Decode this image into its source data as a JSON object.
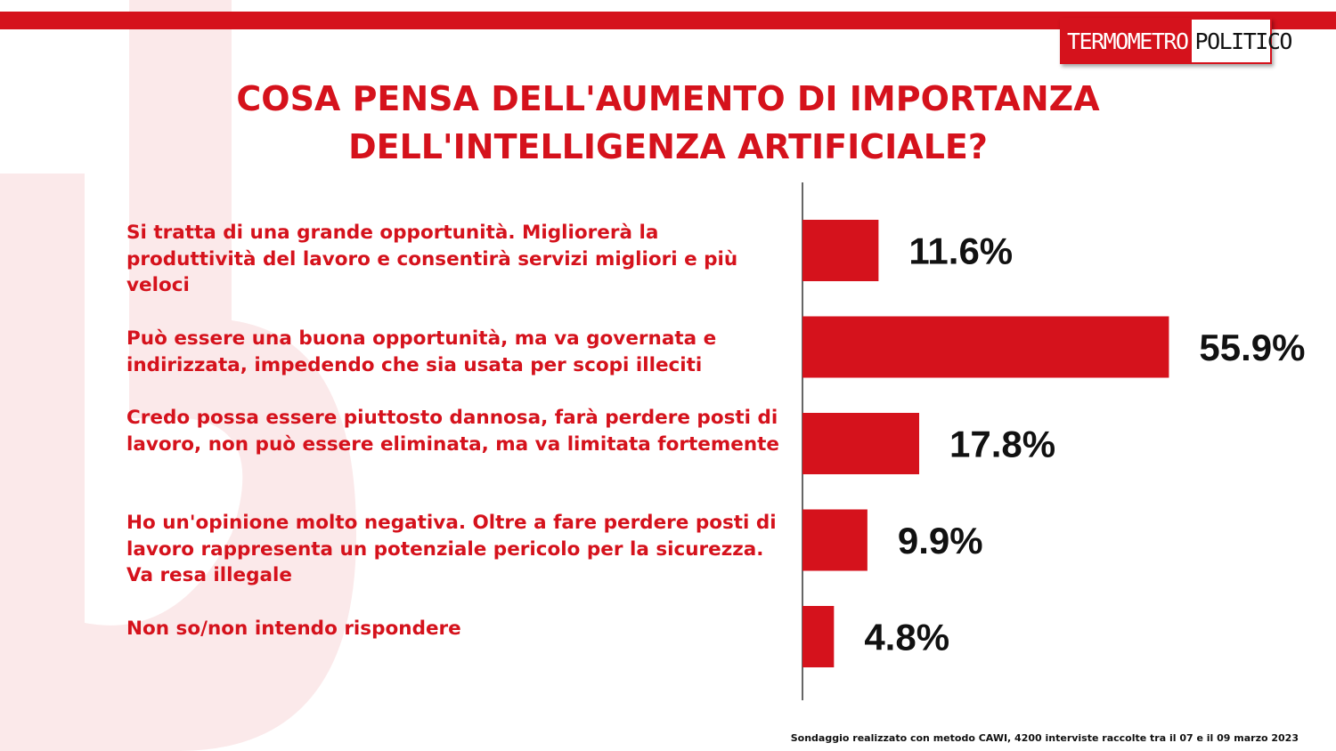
{
  "header": {
    "logo_part1": "TERMOMETRO",
    "logo_part2": "POLITICO",
    "brand_color": "#d5121c"
  },
  "chart_data": {
    "type": "bar",
    "orientation": "horizontal",
    "title_line1": "COSA PENSA DELL'AUMENTO DI IMPORTANZA",
    "title_line2": "DELL'INTELLIGENZA ARTIFICIALE?",
    "categories": [
      "Si tratta di una grande opportunità. Migliorerà la produttività del lavoro e consentirà servizi migliori e più veloci",
      "Può essere una buona opportunità, ma va governata e indirizzata, impedendo che sia usata per scopi illeciti",
      "Credo possa essere piuttosto dannosa, farà perdere posti di lavoro, non può essere eliminata, ma va limitata fortemente",
      "Ho un'opinione molto negativa. Oltre a fare perdere posti di lavoro rappresenta un potenziale pericolo per la sicurezza. Va resa illegale",
      "Non so/non intendo rispondere"
    ],
    "values": [
      11.6,
      55.9,
      17.8,
      9.9,
      4.8
    ],
    "value_labels": [
      "11.6%",
      "55.9%",
      "17.8%",
      "9.9%",
      "4.8%"
    ],
    "xlim": [
      0,
      60
    ],
    "bar_color": "#d5121c",
    "grid": false,
    "legend": "none"
  },
  "footnote": "Sondaggio realizzato con metodo CAWI, 4200 interviste raccolte tra il 07 e il 09 marzo 2023"
}
